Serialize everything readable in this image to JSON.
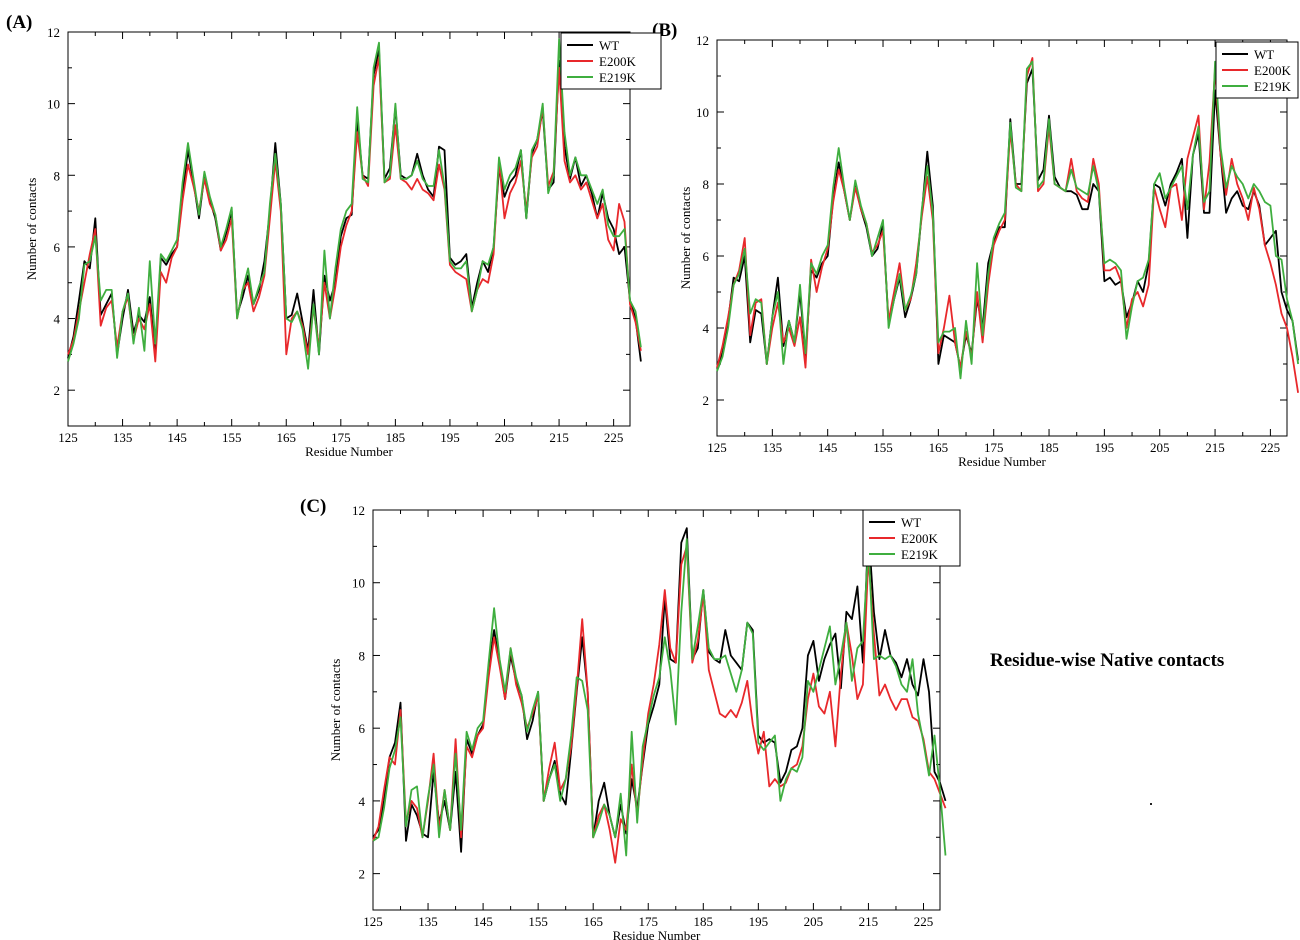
{
  "caption": "Residue-wise Native contacts",
  "panel_labels": [
    "(A)",
    "(B)",
    "(C)"
  ],
  "colors": {
    "WT": "#000000",
    "E200K": "#e8282b",
    "E219K": "#3fae3f"
  },
  "chart_data": [
    {
      "type": "line",
      "panel": "(A)",
      "xlabel": "Residue Number",
      "ylabel": "Number of contacts",
      "xlim": [
        125,
        228
      ],
      "ylim": [
        1,
        12
      ],
      "xticks": [
        125,
        135,
        145,
        155,
        165,
        175,
        185,
        195,
        205,
        215,
        225
      ],
      "yticks": [
        2,
        4,
        6,
        8,
        10,
        12
      ],
      "grid": false,
      "legend": "top-right",
      "x_start": 125,
      "series": [
        {
          "name": "WT",
          "values": [
            2.9,
            3.5,
            4.5,
            5.6,
            5.4,
            6.8,
            4.1,
            4.4,
            4.7,
            3.0,
            4.0,
            4.8,
            3.6,
            4.1,
            3.9,
            4.6,
            3.0,
            5.7,
            5.5,
            5.8,
            6.0,
            7.5,
            8.7,
            7.8,
            6.8,
            8.0,
            7.3,
            6.8,
            5.9,
            6.4,
            7.0,
            4.1,
            4.6,
            5.2,
            4.4,
            4.8,
            5.6,
            7.0,
            8.9,
            7.2,
            4.0,
            4.1,
            4.7,
            3.9,
            3.1,
            4.8,
            3.0,
            5.2,
            4.5,
            5.0,
            6.3,
            6.8,
            6.9,
            9.6,
            8.0,
            7.9,
            10.8,
            11.5,
            7.9,
            8.2,
            9.9,
            8.0,
            7.9,
            8.0,
            8.6,
            8.0,
            7.6,
            7.4,
            8.8,
            8.7,
            5.7,
            5.5,
            5.6,
            5.8,
            4.3,
            5.0,
            5.6,
            5.3,
            6.0,
            8.2,
            7.4,
            7.8,
            8.0,
            8.7,
            6.8,
            8.6,
            9.0,
            9.8,
            7.6,
            7.8,
            11.2,
            8.8,
            7.9,
            8.5,
            7.7,
            8.0,
            7.5,
            6.8,
            7.5,
            6.8,
            6.5,
            5.8,
            6.0,
            4.5,
            4.0,
            2.8
          ]
        },
        {
          "name": "E200K",
          "values": [
            3.0,
            3.4,
            4.2,
            5.0,
            5.8,
            6.5,
            3.8,
            4.3,
            4.5,
            3.2,
            4.2,
            4.6,
            3.4,
            4.0,
            3.7,
            4.4,
            2.8,
            5.3,
            5.0,
            5.7,
            6.0,
            7.3,
            8.3,
            7.7,
            7.0,
            7.9,
            7.2,
            6.9,
            5.9,
            6.2,
            6.8,
            4.0,
            4.8,
            5.0,
            4.2,
            4.6,
            5.2,
            6.8,
            8.4,
            7.0,
            3.0,
            4.0,
            4.2,
            3.8,
            3.0,
            4.3,
            3.2,
            5.0,
            4.0,
            4.9,
            6.0,
            6.6,
            7.0,
            9.2,
            8.0,
            7.7,
            10.5,
            11.3,
            7.8,
            7.9,
            9.4,
            7.9,
            7.8,
            7.6,
            7.9,
            7.6,
            7.5,
            7.3,
            8.3,
            7.6,
            5.5,
            5.3,
            5.2,
            5.1,
            4.2,
            4.8,
            5.1,
            5.0,
            5.8,
            8.4,
            6.8,
            7.5,
            7.8,
            8.4,
            7.0,
            8.5,
            8.8,
            9.9,
            7.7,
            8.1,
            11.0,
            8.4,
            7.8,
            8.0,
            7.6,
            7.8,
            7.3,
            6.8,
            7.2,
            6.2,
            5.9,
            7.2,
            6.7,
            4.4,
            3.9,
            3.1
          ]
        },
        {
          "name": "E219K",
          "values": [
            2.8,
            3.3,
            4.0,
            5.5,
            5.6,
            6.3,
            4.5,
            4.8,
            4.8,
            2.9,
            4.2,
            4.7,
            3.3,
            4.3,
            3.1,
            5.6,
            3.3,
            5.8,
            5.6,
            5.9,
            6.2,
            7.8,
            8.9,
            7.9,
            6.9,
            8.1,
            7.4,
            6.9,
            6.0,
            6.5,
            7.1,
            4.0,
            4.8,
            5.4,
            4.4,
            4.9,
            5.3,
            7.2,
            8.6,
            7.2,
            4.0,
            3.9,
            4.2,
            3.7,
            2.6,
            4.4,
            3.0,
            5.9,
            4.0,
            5.4,
            6.5,
            7.0,
            7.2,
            9.9,
            7.9,
            7.8,
            11.0,
            11.7,
            7.8,
            8.0,
            10.0,
            7.9,
            7.9,
            8.0,
            8.4,
            7.9,
            7.7,
            7.7,
            8.7,
            7.7,
            5.6,
            5.4,
            5.4,
            5.6,
            4.2,
            4.8,
            5.6,
            5.5,
            6.0,
            8.5,
            7.6,
            8.0,
            8.2,
            8.7,
            6.8,
            8.7,
            9.0,
            10.0,
            7.5,
            8.0,
            11.8,
            9.2,
            8.0,
            8.5,
            8.0,
            8.0,
            7.6,
            7.2,
            7.6,
            6.6,
            6.3,
            6.3,
            6.5,
            4.5,
            4.2,
            3.2
          ]
        }
      ]
    },
    {
      "type": "line",
      "panel": "(B)",
      "xlabel": "Residue Number",
      "ylabel": "Number of contacts",
      "xlim": [
        125,
        228
      ],
      "ylim": [
        1,
        12
      ],
      "xticks": [
        125,
        135,
        145,
        155,
        165,
        175,
        185,
        195,
        205,
        215,
        225
      ],
      "yticks": [
        2,
        4,
        6,
        8,
        10,
        12
      ],
      "grid": false,
      "legend": "top-right",
      "x_start": 125,
      "series": [
        {
          "name": "WT",
          "values": [
            2.9,
            3.3,
            4.2,
            5.4,
            5.3,
            6.0,
            3.6,
            4.5,
            4.4,
            3.0,
            4.3,
            5.4,
            3.5,
            4.2,
            3.6,
            5.0,
            3.2,
            5.6,
            5.4,
            5.8,
            6.0,
            7.6,
            8.6,
            7.8,
            7.0,
            8.0,
            7.3,
            6.8,
            6.0,
            6.2,
            6.9,
            4.1,
            4.8,
            5.4,
            4.3,
            4.8,
            5.5,
            7.2,
            8.9,
            7.4,
            3.0,
            3.8,
            3.7,
            3.6,
            2.9,
            3.8,
            3.3,
            4.8,
            4.0,
            5.8,
            6.4,
            6.8,
            6.8,
            9.8,
            8.0,
            8.0,
            10.8,
            11.2,
            8.1,
            8.4,
            9.9,
            8.2,
            7.9,
            7.8,
            7.8,
            7.7,
            7.3,
            7.3,
            8.0,
            7.8,
            5.3,
            5.4,
            5.2,
            5.3,
            4.3,
            4.7,
            5.3,
            5.0,
            5.8,
            8.0,
            7.9,
            7.4,
            8.0,
            8.3,
            8.7,
            6.5,
            8.8,
            9.4,
            7.2,
            7.2,
            10.6,
            8.8,
            7.2,
            7.6,
            7.8,
            7.4,
            7.3,
            7.8,
            7.4,
            6.3,
            6.5,
            6.7,
            5.0,
            4.5,
            4.2,
            3.1
          ]
        },
        {
          "name": "E200K",
          "values": [
            2.9,
            3.5,
            4.3,
            5.2,
            5.6,
            6.5,
            3.8,
            4.7,
            4.8,
            3.0,
            4.0,
            4.7,
            3.6,
            4.0,
            3.5,
            4.3,
            2.9,
            5.9,
            5.0,
            5.7,
            6.2,
            7.5,
            8.4,
            7.8,
            7.0,
            7.9,
            7.3,
            6.9,
            6.1,
            6.3,
            6.7,
            4.2,
            5.0,
            5.8,
            4.5,
            4.8,
            5.8,
            7.1,
            8.2,
            7.0,
            3.3,
            4.0,
            4.9,
            3.6,
            2.9,
            3.9,
            3.2,
            5.0,
            3.6,
            5.2,
            6.3,
            6.7,
            7.0,
            9.5,
            8.0,
            7.8,
            11.0,
            11.5,
            7.8,
            8.0,
            9.6,
            8.0,
            7.9,
            7.8,
            8.7,
            7.8,
            7.6,
            7.5,
            8.7,
            8.0,
            5.6,
            5.6,
            5.7,
            5.3,
            4.0,
            4.8,
            5.0,
            4.6,
            5.2,
            7.9,
            7.3,
            6.8,
            7.9,
            8.0,
            7.0,
            8.7,
            9.3,
            9.9,
            7.3,
            8.6,
            11.2,
            8.8,
            7.7,
            8.7,
            8.0,
            7.6,
            7.0,
            7.9,
            7.3,
            6.3,
            5.8,
            5.2,
            4.4,
            4.0,
            3.2,
            2.2
          ]
        },
        {
          "name": "E219K",
          "values": [
            2.8,
            3.2,
            4.0,
            5.2,
            5.5,
            6.2,
            4.4,
            4.8,
            4.7,
            3.0,
            4.3,
            5.0,
            3.0,
            4.2,
            3.6,
            5.2,
            3.3,
            5.8,
            5.5,
            6.0,
            6.3,
            7.9,
            9.0,
            7.9,
            7.0,
            8.1,
            7.4,
            6.9,
            6.0,
            6.5,
            7.0,
            4.0,
            4.8,
            5.5,
            4.5,
            4.9,
            5.5,
            7.3,
            8.5,
            7.2,
            3.6,
            3.9,
            3.9,
            4.0,
            2.6,
            4.2,
            3.0,
            5.8,
            3.8,
            5.5,
            6.5,
            6.9,
            7.2,
            9.7,
            7.9,
            7.8,
            11.2,
            11.4,
            7.9,
            8.1,
            9.8,
            8.0,
            7.9,
            7.8,
            8.4,
            7.9,
            7.8,
            7.7,
            8.5,
            7.8,
            5.8,
            5.9,
            5.8,
            5.6,
            3.7,
            4.6,
            5.3,
            5.4,
            5.9,
            8.0,
            8.3,
            7.6,
            7.9,
            8.2,
            8.5,
            7.3,
            8.8,
            9.6,
            7.5,
            7.8,
            11.4,
            9.0,
            7.9,
            8.5,
            8.2,
            8.0,
            7.6,
            8.0,
            7.8,
            7.5,
            7.4,
            6.0,
            5.9,
            4.8,
            4.2,
            3.0
          ]
        }
      ]
    },
    {
      "type": "line",
      "panel": "(C)",
      "xlabel": "Residue Number",
      "ylabel": "Number of contacts",
      "xlim": [
        125,
        228
      ],
      "ylim": [
        1,
        12
      ],
      "xticks": [
        125,
        135,
        145,
        155,
        165,
        175,
        185,
        195,
        205,
        215,
        225
      ],
      "yticks": [
        2,
        4,
        6,
        8,
        10,
        12
      ],
      "grid": false,
      "legend": "top-right",
      "x_start": 125,
      "series": [
        {
          "name": "WT",
          "values": [
            3.0,
            3.2,
            4.0,
            5.2,
            5.6,
            6.7,
            2.9,
            3.9,
            3.6,
            3.1,
            3.0,
            4.8,
            3.4,
            4.0,
            3.2,
            4.8,
            2.6,
            5.7,
            5.3,
            5.8,
            6.1,
            7.6,
            8.7,
            7.8,
            6.8,
            8.0,
            7.3,
            6.9,
            5.7,
            6.2,
            7.0,
            4.0,
            4.6,
            5.1,
            4.2,
            3.9,
            5.4,
            7.0,
            8.5,
            7.0,
            3.0,
            4.0,
            4.5,
            3.6,
            3.0,
            3.9,
            3.1,
            4.6,
            3.8,
            5.0,
            6.1,
            6.6,
            7.2,
            9.6,
            7.9,
            7.8,
            11.1,
            11.5,
            7.9,
            8.2,
            9.8,
            8.1,
            7.9,
            7.8,
            8.7,
            8.0,
            7.8,
            7.6,
            8.9,
            8.7,
            5.8,
            5.6,
            5.7,
            5.6,
            4.5,
            4.8,
            5.4,
            5.5,
            6.0,
            8.0,
            8.4,
            7.3,
            7.9,
            8.3,
            8.6,
            7.1,
            9.2,
            9.0,
            9.9,
            7.8,
            11.5,
            9.2,
            7.9,
            8.7,
            8.0,
            7.8,
            7.4,
            7.9,
            7.2,
            6.9,
            7.9,
            7.0,
            4.8,
            4.5,
            4.0
          ]
        },
        {
          "name": "E200K",
          "values": [
            2.9,
            3.3,
            4.3,
            5.2,
            5.0,
            6.5,
            3.4,
            4.0,
            3.8,
            3.0,
            4.0,
            5.3,
            3.2,
            4.3,
            3.2,
            5.7,
            3.0,
            5.5,
            5.2,
            5.8,
            6.0,
            7.4,
            8.5,
            7.7,
            6.8,
            8.2,
            7.2,
            6.7,
            6.0,
            6.4,
            6.9,
            4.0,
            4.9,
            5.6,
            4.3,
            4.6,
            5.5,
            7.1,
            9.0,
            7.0,
            3.0,
            3.6,
            3.9,
            3.2,
            2.3,
            3.5,
            3.2,
            5.0,
            3.6,
            5.1,
            6.4,
            7.2,
            8.3,
            9.8,
            8.2,
            7.8,
            10.5,
            11.0,
            7.8,
            8.4,
            9.7,
            7.6,
            7.0,
            6.4,
            6.3,
            6.5,
            6.3,
            6.7,
            7.3,
            6.1,
            5.3,
            5.9,
            4.4,
            4.6,
            4.4,
            4.5,
            4.9,
            5.0,
            5.5,
            6.8,
            7.5,
            6.6,
            6.4,
            7.0,
            5.5,
            7.5,
            8.9,
            8.0,
            6.8,
            7.2,
            10.7,
            8.6,
            6.9,
            7.2,
            6.8,
            6.5,
            6.8,
            6.8,
            6.3,
            6.2,
            5.7,
            4.8,
            4.6,
            4.2,
            3.8
          ]
        },
        {
          "name": "E219K",
          "values": [
            2.9,
            3.0,
            3.8,
            4.9,
            5.4,
            6.3,
            3.3,
            4.3,
            4.4,
            3.0,
            4.1,
            5.0,
            3.0,
            4.3,
            3.2,
            5.3,
            3.2,
            5.9,
            5.4,
            6.0,
            6.2,
            7.8,
            9.3,
            7.9,
            7.0,
            8.2,
            7.4,
            6.9,
            5.9,
            6.5,
            7.0,
            4.0,
            4.6,
            5.0,
            4.0,
            4.6,
            5.8,
            7.4,
            7.3,
            6.5,
            3.0,
            3.4,
            3.9,
            3.6,
            3.0,
            4.2,
            2.5,
            5.9,
            3.4,
            5.5,
            6.2,
            6.9,
            7.4,
            8.5,
            7.6,
            6.1,
            9.2,
            11.2,
            7.9,
            8.8,
            9.8,
            8.2,
            7.9,
            7.9,
            8.0,
            7.5,
            7.0,
            7.6,
            8.9,
            8.6,
            5.6,
            5.4,
            5.6,
            5.8,
            4.0,
            4.6,
            4.9,
            4.8,
            5.2,
            7.3,
            7.0,
            7.6,
            8.2,
            8.8,
            7.2,
            8.0,
            8.9,
            7.3,
            8.2,
            8.4,
            11.0,
            7.9,
            8.0,
            7.9,
            8.0,
            7.7,
            7.2,
            7.0,
            7.9,
            6.4,
            5.6,
            4.7,
            5.8,
            4.3,
            2.5
          ]
        }
      ]
    }
  ]
}
